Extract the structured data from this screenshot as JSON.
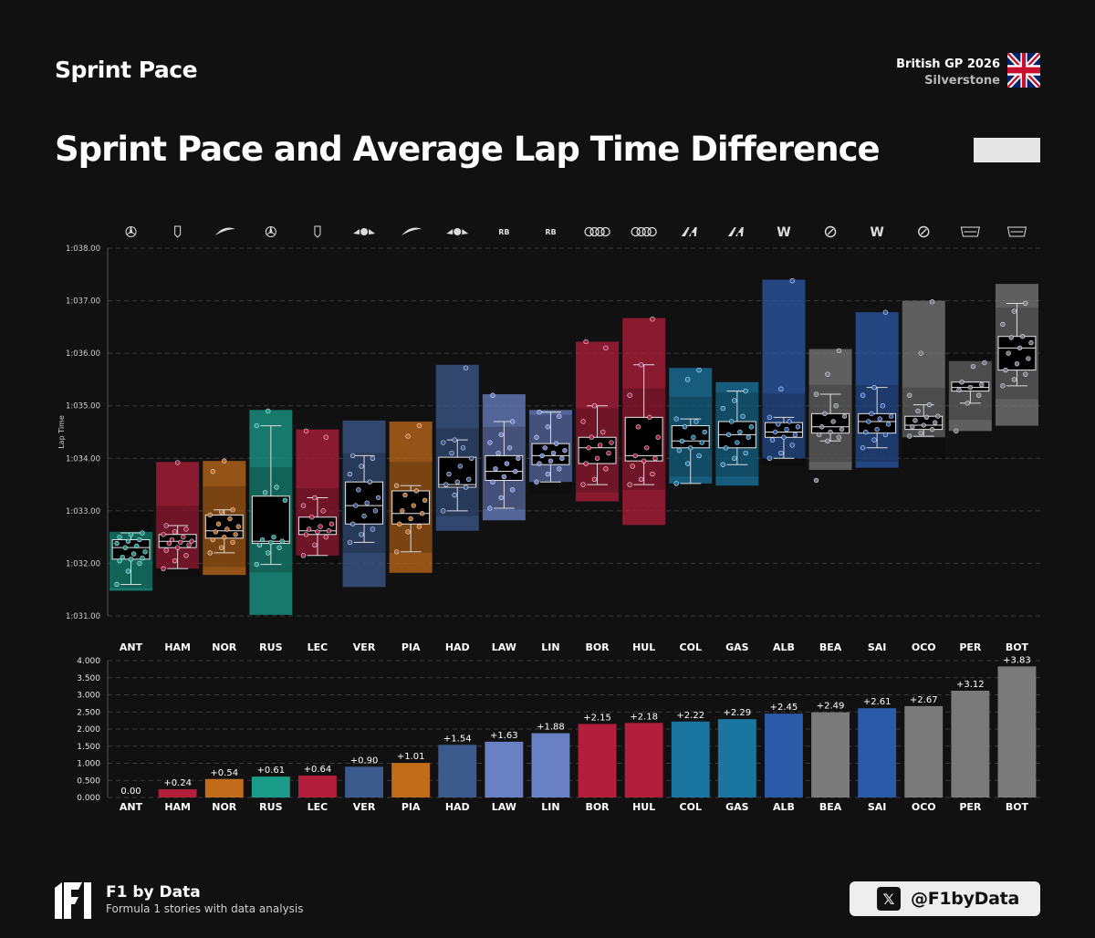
{
  "header": {
    "brand_title": "Sprint Pace",
    "event": "British GP 2026",
    "venue": "Silverstone",
    "main_title": "Sprint Pace and Average Lap Time Difference"
  },
  "footer": {
    "name": "F1 by Data",
    "tagline": "Formula 1 stories with data analysis",
    "social_handle": "@F1byData",
    "social_icon": "x-logo-icon"
  },
  "chart_data": [
    {
      "type": "box",
      "ylabel": "Lap Time",
      "ylim": [
        91.0,
        98.0
      ],
      "yticks": [
        "1:031.00",
        "1:032.00",
        "1:033.00",
        "1:034.00",
        "1:035.00",
        "1:036.00",
        "1:037.00",
        "1:038.00"
      ],
      "ytick_values": [
        91,
        92,
        93,
        94,
        95,
        96,
        97,
        98
      ],
      "grid": true,
      "categories": [
        "ANT",
        "HAM",
        "NOR",
        "RUS",
        "LEC",
        "VER",
        "PIA",
        "HAD",
        "LAW",
        "LIN",
        "BOR",
        "HUL",
        "COL",
        "GAS",
        "ALB",
        "BEA",
        "SAI",
        "OCO",
        "PER",
        "BOT"
      ],
      "team_icons": [
        "mercedes-icon",
        "ferrari-icon",
        "mclaren-icon",
        "mercedes-icon",
        "ferrari-icon",
        "red-bull-icon",
        "mclaren-icon",
        "red-bull-icon",
        "racing-bulls-icon",
        "racing-bulls-icon",
        "audi-icon",
        "audi-icon",
        "alpine-icon",
        "alpine-icon",
        "williams-icon",
        "haas-icon",
        "williams-icon",
        "haas-icon",
        "cadillac-icon",
        "cadillac-icon"
      ],
      "colors": [
        "#1a9c89",
        "#b21e3b",
        "#c26b1a",
        "#1a9c89",
        "#b21e3b",
        "#3c5a8c",
        "#c26b1a",
        "#3c5a8c",
        "#6a80c4",
        "#6a80c4",
        "#b21e3b",
        "#b21e3b",
        "#1a76a0",
        "#1a76a0",
        "#2b5aa8",
        "#7a7a7a",
        "#2b5aa8",
        "#7a7a7a",
        "#7a7a7a",
        "#7a7a7a"
      ],
      "series": [
        {
          "name": "ANT",
          "q1": 92.08,
          "median": 92.3,
          "q3": 92.45,
          "whisker_low": 91.6,
          "whisker_high": 92.58,
          "band_low": 91.48,
          "band_high": 92.6,
          "band_outer_high": 93.02,
          "points": [
            91.6,
            91.85,
            92.0,
            92.05,
            92.08,
            92.1,
            92.12,
            92.18,
            92.22,
            92.3,
            92.33,
            92.38,
            92.42,
            92.45,
            92.5,
            92.55,
            92.58
          ]
        },
        {
          "name": "HAM",
          "q1": 92.3,
          "median": 92.42,
          "q3": 92.55,
          "whisker_low": 91.9,
          "whisker_high": 92.72,
          "band_low": 91.9,
          "band_high": 93.93,
          "band_outer_high": null,
          "points": [
            91.9,
            92.05,
            92.15,
            92.25,
            92.3,
            92.35,
            92.38,
            92.4,
            92.42,
            92.45,
            92.5,
            92.55,
            92.6,
            92.65,
            92.72,
            93.92
          ]
        },
        {
          "name": "NOR",
          "q1": 92.48,
          "median": 92.62,
          "q3": 92.92,
          "whisker_low": 92.2,
          "whisker_high": 93.02,
          "band_low": 91.78,
          "band_high": 93.95,
          "band_outer_high": null,
          "points": [
            92.2,
            92.3,
            92.4,
            92.45,
            92.5,
            92.55,
            92.6,
            92.65,
            92.7,
            92.75,
            92.85,
            92.92,
            92.98,
            93.02,
            93.75,
            93.95
          ]
        },
        {
          "name": "RUS",
          "q1": 92.38,
          "median": 92.42,
          "q3": 93.28,
          "whisker_low": 91.98,
          "whisker_high": 94.62,
          "band_low": 91.02,
          "band_high": 94.92,
          "band_outer_high": null,
          "points": [
            91.98,
            92.2,
            92.3,
            92.35,
            92.4,
            92.42,
            92.45,
            92.5,
            93.2,
            93.35,
            93.45,
            94.62,
            94.9
          ]
        },
        {
          "name": "LEC",
          "q1": 92.55,
          "median": 92.62,
          "q3": 92.88,
          "whisker_low": 92.15,
          "whisker_high": 93.25,
          "band_low": 92.15,
          "band_high": 94.55,
          "band_outer_high": null,
          "points": [
            92.15,
            92.35,
            92.5,
            92.55,
            92.6,
            92.62,
            92.65,
            92.7,
            92.75,
            92.88,
            93.0,
            93.1,
            93.25,
            94.4,
            94.52
          ]
        },
        {
          "name": "VER",
          "q1": 92.75,
          "median": 93.1,
          "q3": 93.55,
          "whisker_low": 92.4,
          "whisker_high": 94.05,
          "band_low": 91.55,
          "band_high": 94.72,
          "band_outer_high": null,
          "points": [
            92.4,
            92.55,
            92.65,
            92.75,
            92.9,
            93.0,
            93.1,
            93.15,
            93.25,
            93.4,
            93.55,
            93.7,
            93.85,
            94.0,
            94.05
          ]
        },
        {
          "name": "PIA",
          "q1": 92.75,
          "median": 92.95,
          "q3": 93.38,
          "whisker_low": 92.22,
          "whisker_high": 93.48,
          "band_low": 91.82,
          "band_high": 94.7,
          "band_outer_high": null,
          "points": [
            92.22,
            92.6,
            92.7,
            92.75,
            92.85,
            92.95,
            93.0,
            93.1,
            93.2,
            93.3,
            93.38,
            93.48,
            94.42,
            94.62
          ]
        },
        {
          "name": "HAD",
          "q1": 93.45,
          "median": 93.5,
          "q3": 94.02,
          "whisker_low": 93.0,
          "whisker_high": 94.35,
          "band_low": 92.62,
          "band_high": 95.78,
          "band_outer_high": null,
          "points": [
            93.0,
            93.3,
            93.45,
            93.5,
            93.55,
            93.6,
            93.7,
            93.85,
            94.0,
            94.1,
            94.2,
            94.3,
            94.35,
            95.72
          ]
        },
        {
          "name": "LAW",
          "q1": 93.58,
          "median": 93.75,
          "q3": 94.05,
          "whisker_low": 93.05,
          "whisker_high": 94.7,
          "band_low": 92.82,
          "band_high": 95.22,
          "band_outer_high": null,
          "points": [
            93.05,
            93.25,
            93.4,
            93.55,
            93.65,
            93.75,
            93.8,
            93.9,
            94.0,
            94.1,
            94.2,
            94.3,
            94.45,
            94.7,
            95.2
          ]
        },
        {
          "name": "LIN",
          "q1": 93.88,
          "median": 94.05,
          "q3": 94.28,
          "whisker_low": 93.55,
          "whisker_high": 94.88,
          "band_low": 93.55,
          "band_high": 94.92,
          "band_outer_high": null,
          "points": [
            93.55,
            93.7,
            93.8,
            93.9,
            93.95,
            94.0,
            94.05,
            94.1,
            94.15,
            94.2,
            94.28,
            94.4,
            94.6,
            94.8,
            94.88
          ]
        },
        {
          "name": "BOR",
          "q1": 93.9,
          "median": 94.2,
          "q3": 94.4,
          "whisker_low": 93.5,
          "whisker_high": 95.0,
          "band_low": 93.18,
          "band_high": 96.22,
          "band_outer_high": null,
          "points": [
            93.5,
            93.6,
            93.8,
            93.9,
            94.0,
            94.1,
            94.2,
            94.25,
            94.3,
            94.4,
            94.5,
            94.7,
            95.0,
            96.1,
            96.22
          ]
        },
        {
          "name": "HUL",
          "q1": 93.95,
          "median": 94.05,
          "q3": 94.78,
          "whisker_low": 93.5,
          "whisker_high": 95.78,
          "band_low": 92.73,
          "band_high": 96.67,
          "band_outer_high": null,
          "points": [
            93.5,
            93.6,
            93.7,
            93.85,
            93.95,
            94.0,
            94.05,
            94.2,
            94.4,
            94.6,
            94.78,
            95.2,
            95.78,
            96.65
          ]
        },
        {
          "name": "COL",
          "q1": 94.2,
          "median": 94.33,
          "q3": 94.62,
          "whisker_low": 93.52,
          "whisker_high": 94.75,
          "band_low": 93.52,
          "band_high": 95.72,
          "band_outer_high": null,
          "points": [
            93.52,
            93.9,
            94.05,
            94.15,
            94.2,
            94.3,
            94.33,
            94.4,
            94.5,
            94.6,
            94.7,
            94.75,
            95.5,
            95.68
          ]
        },
        {
          "name": "GAS",
          "q1": 94.2,
          "median": 94.45,
          "q3": 94.7,
          "whisker_low": 93.88,
          "whisker_high": 95.28,
          "band_low": 93.48,
          "band_high": 95.45,
          "band_outer_high": null,
          "points": [
            93.88,
            94.0,
            94.1,
            94.2,
            94.3,
            94.4,
            94.45,
            94.5,
            94.6,
            94.7,
            94.8,
            94.95,
            95.1,
            95.28
          ]
        },
        {
          "name": "ALB",
          "q1": 94.4,
          "median": 94.5,
          "q3": 94.68,
          "whisker_low": 94.0,
          "whisker_high": 94.78,
          "band_low": 94.0,
          "band_high": 97.4,
          "band_outer_high": null,
          "points": [
            94.0,
            94.1,
            94.25,
            94.35,
            94.4,
            94.45,
            94.5,
            94.55,
            94.6,
            94.65,
            94.7,
            94.78,
            95.32,
            97.38
          ]
        },
        {
          "name": "BEA",
          "q1": 94.48,
          "median": 94.6,
          "q3": 94.85,
          "whisker_low": 94.33,
          "whisker_high": 95.22,
          "band_low": 93.78,
          "band_high": 96.08,
          "band_outer_high": null,
          "points": [
            93.58,
            94.33,
            94.4,
            94.45,
            94.5,
            94.55,
            94.6,
            94.7,
            94.8,
            94.85,
            95.0,
            95.22,
            95.6,
            96.05
          ]
        },
        {
          "name": "SAI",
          "q1": 94.48,
          "median": 94.7,
          "q3": 94.85,
          "whisker_low": 94.2,
          "whisker_high": 95.35,
          "band_low": 93.82,
          "band_high": 96.78,
          "band_outer_high": null,
          "points": [
            94.2,
            94.35,
            94.45,
            94.5,
            94.55,
            94.65,
            94.7,
            94.75,
            94.8,
            94.85,
            95.0,
            95.2,
            95.35,
            96.78
          ]
        },
        {
          "name": "OCO",
          "q1": 94.55,
          "median": 94.63,
          "q3": 94.8,
          "whisker_low": 94.42,
          "whisker_high": 95.02,
          "band_low": 94.4,
          "band_high": 97.0,
          "band_outer_high": null,
          "points": [
            94.42,
            94.48,
            94.55,
            94.6,
            94.63,
            94.68,
            94.72,
            94.78,
            94.8,
            94.9,
            95.02,
            95.2,
            96.0,
            96.98
          ]
        },
        {
          "name": "PER",
          "q1": 95.28,
          "median": 95.35,
          "q3": 95.45,
          "whisker_low": 95.05,
          "whisker_high": 95.45,
          "band_low": 94.52,
          "band_high": 95.85,
          "band_outer_high": null,
          "points": [
            94.52,
            95.05,
            95.2,
            95.3,
            95.35,
            95.4,
            95.45,
            95.75,
            95.82
          ]
        },
        {
          "name": "BOT",
          "q1": 95.68,
          "median": 96.1,
          "q3": 96.32,
          "whisker_low": 95.38,
          "whisker_high": 96.95,
          "band_low": 94.62,
          "band_high": 97.32,
          "band_outer_high": null,
          "points": [
            95.38,
            95.5,
            95.6,
            95.68,
            95.8,
            95.9,
            96.0,
            96.1,
            96.2,
            96.3,
            96.32,
            96.55,
            96.8,
            96.95
          ]
        }
      ]
    },
    {
      "type": "bar",
      "categories": [
        "ANT",
        "HAM",
        "NOR",
        "RUS",
        "LEC",
        "VER",
        "PIA",
        "HAD",
        "LAW",
        "LIN",
        "BOR",
        "HUL",
        "COL",
        "GAS",
        "ALB",
        "BEA",
        "SAI",
        "OCO",
        "PER",
        "BOT"
      ],
      "values": [
        0.0,
        0.24,
        0.54,
        0.61,
        0.64,
        0.9,
        1.01,
        1.54,
        1.63,
        1.88,
        2.15,
        2.18,
        2.22,
        2.29,
        2.45,
        2.49,
        2.61,
        2.67,
        3.12,
        3.83
      ],
      "value_labels": [
        "0.00",
        "+0.24",
        "+0.54",
        "+0.61",
        "+0.64",
        "+0.90",
        "+1.01",
        "+1.54",
        "+1.63",
        "+1.88",
        "+2.15",
        "+2.18",
        "+2.22",
        "+2.29",
        "+2.45",
        "+2.49",
        "+2.61",
        "+2.67",
        "+3.12",
        "+3.83"
      ],
      "colors": [
        "#1a9c89",
        "#b21e3b",
        "#c26b1a",
        "#1a9c89",
        "#b21e3b",
        "#3c5a8c",
        "#c26b1a",
        "#3c5a8c",
        "#6a80c4",
        "#6a80c4",
        "#b21e3b",
        "#b21e3b",
        "#1a76a0",
        "#1a76a0",
        "#2b5aa8",
        "#7a7a7a",
        "#2b5aa8",
        "#7a7a7a",
        "#7a7a7a",
        "#7a7a7a"
      ],
      "ylim": [
        0,
        4.0
      ],
      "yticks": [
        "0.000",
        "0.500",
        "1.000",
        "1.500",
        "2.000",
        "2.500",
        "3.000",
        "3.500",
        "4.000"
      ],
      "ytick_values": [
        0,
        0.5,
        1,
        1.5,
        2,
        2.5,
        3,
        3.5,
        4
      ],
      "grid": true
    }
  ]
}
